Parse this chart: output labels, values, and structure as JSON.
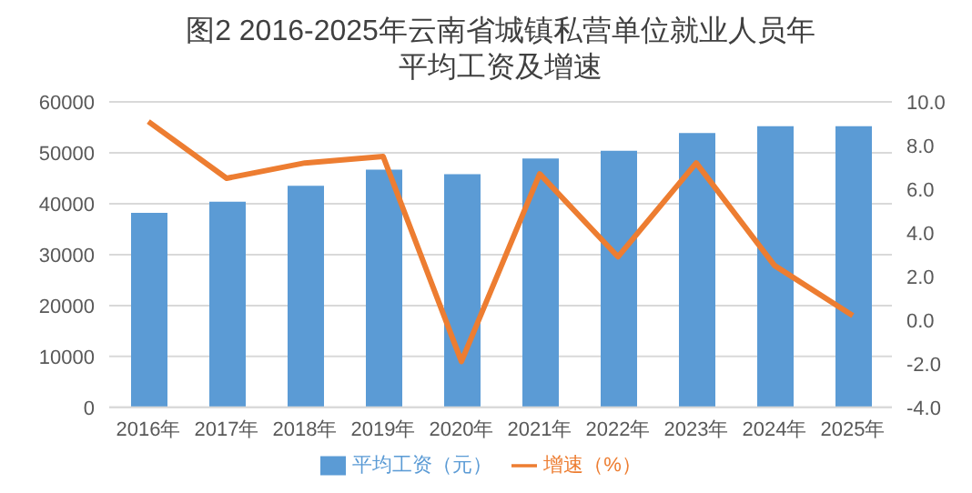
{
  "chart_data": {
    "type": "bar",
    "title": "图2 2016-2025年云南省城镇私营单位就业人员年平均工资及增速",
    "categories": [
      "2016年",
      "2017年",
      "2018年",
      "2019年",
      "2020年",
      "2021年",
      "2022年",
      "2023年",
      "2024年",
      "2025年"
    ],
    "series": [
      {
        "name": "平均工资（元）",
        "color": "#5b9bd5",
        "values": [
          38200,
          40400,
          43500,
          46700,
          45800,
          48900,
          50400,
          53900,
          55200,
          55200
        ]
      },
      {
        "name": "增速（%）",
        "type": "line",
        "axis": "y2",
        "color": "#ed7d31",
        "values": [
          9.1,
          6.5,
          7.2,
          7.5,
          -1.9,
          6.7,
          2.9,
          7.2,
          2.5,
          0.2
        ]
      }
    ],
    "ylim": [
      0,
      60000
    ],
    "yticks": [
      0,
      10000,
      20000,
      30000,
      40000,
      50000,
      60000
    ],
    "y2lim": [
      -4,
      10
    ],
    "y2ticks": [
      {
        "value": -4,
        "label": "-4.0"
      },
      {
        "value": -2,
        "label": "-2.0"
      },
      {
        "value": 0,
        "label": "0.0"
      },
      {
        "value": 2,
        "label": "2.0"
      },
      {
        "value": 4,
        "label": "4.0"
      },
      {
        "value": 6,
        "label": "6.0"
      },
      {
        "value": 8,
        "label": "8.0"
      },
      {
        "value": 10,
        "label": "10.0"
      }
    ],
    "grid": "y",
    "legend": "bottom",
    "marker": "none",
    "line_style": "solid"
  }
}
